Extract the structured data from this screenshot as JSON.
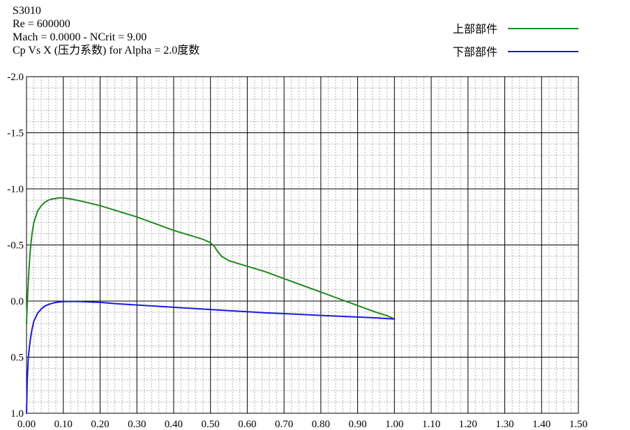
{
  "header": {
    "lines": [
      "S3010",
      "Re = 600000",
      "Mach = 0.0000 - NCrit = 9.00",
      "Cp Vs X (压力系数) for Alpha = 2.0度数"
    ]
  },
  "chart_data": {
    "type": "line",
    "title": "Cp Vs X (压力系数) for Alpha = 2.0度数",
    "xlabel": "",
    "ylabel": "",
    "xlim": [
      0.0,
      1.5
    ],
    "ylim": [
      1.0,
      -2.0
    ],
    "y_inverted": true,
    "grid": true,
    "legend_position": "top-right",
    "x_ticks": [
      "0.00",
      "0.10",
      "0.20",
      "0.30",
      "0.40",
      "0.50",
      "0.60",
      "0.70",
      "0.80",
      "0.90",
      "1.00",
      "1.10",
      "1.20",
      "1.30",
      "1.40",
      "1.50"
    ],
    "y_ticks": [
      "-2.0",
      "-1.5",
      "-1.0",
      "-0.5",
      "0.0",
      "0.5",
      "1.0"
    ],
    "series": [
      {
        "name": "上部部件",
        "color": "#1f8a1f",
        "x": [
          0.0,
          0.003,
          0.006,
          0.01,
          0.015,
          0.02,
          0.03,
          0.04,
          0.05,
          0.06,
          0.07,
          0.08,
          0.09,
          0.1,
          0.11,
          0.12,
          0.15,
          0.2,
          0.25,
          0.3,
          0.35,
          0.4,
          0.45,
          0.48,
          0.5,
          0.51,
          0.52,
          0.53,
          0.55,
          0.58,
          0.6,
          0.65,
          0.7,
          0.75,
          0.8,
          0.85,
          0.9,
          0.95,
          0.98,
          1.0
        ],
        "y": [
          0.2,
          -0.05,
          -0.25,
          -0.45,
          -0.6,
          -0.7,
          -0.8,
          -0.85,
          -0.88,
          -0.9,
          -0.91,
          -0.915,
          -0.92,
          -0.92,
          -0.915,
          -0.91,
          -0.89,
          -0.85,
          -0.8,
          -0.75,
          -0.69,
          -0.63,
          -0.58,
          -0.55,
          -0.52,
          -0.49,
          -0.44,
          -0.4,
          -0.36,
          -0.33,
          -0.31,
          -0.26,
          -0.2,
          -0.14,
          -0.08,
          -0.02,
          0.04,
          0.1,
          0.13,
          0.16
        ]
      },
      {
        "name": "下部部件",
        "color": "#1a1adb",
        "x": [
          0.0,
          0.002,
          0.005,
          0.01,
          0.015,
          0.02,
          0.03,
          0.04,
          0.05,
          0.06,
          0.07,
          0.08,
          0.1,
          0.12,
          0.15,
          0.2,
          0.25,
          0.3,
          0.35,
          0.4,
          0.45,
          0.5,
          0.55,
          0.6,
          0.65,
          0.7,
          0.75,
          0.8,
          0.85,
          0.9,
          0.95,
          1.0
        ],
        "y": [
          1.0,
          0.7,
          0.5,
          0.35,
          0.25,
          0.18,
          0.11,
          0.07,
          0.045,
          0.03,
          0.02,
          0.012,
          0.005,
          0.003,
          0.005,
          0.012,
          0.025,
          0.035,
          0.045,
          0.055,
          0.065,
          0.075,
          0.085,
          0.095,
          0.105,
          0.112,
          0.12,
          0.128,
          0.135,
          0.142,
          0.15,
          0.16
        ]
      }
    ]
  }
}
